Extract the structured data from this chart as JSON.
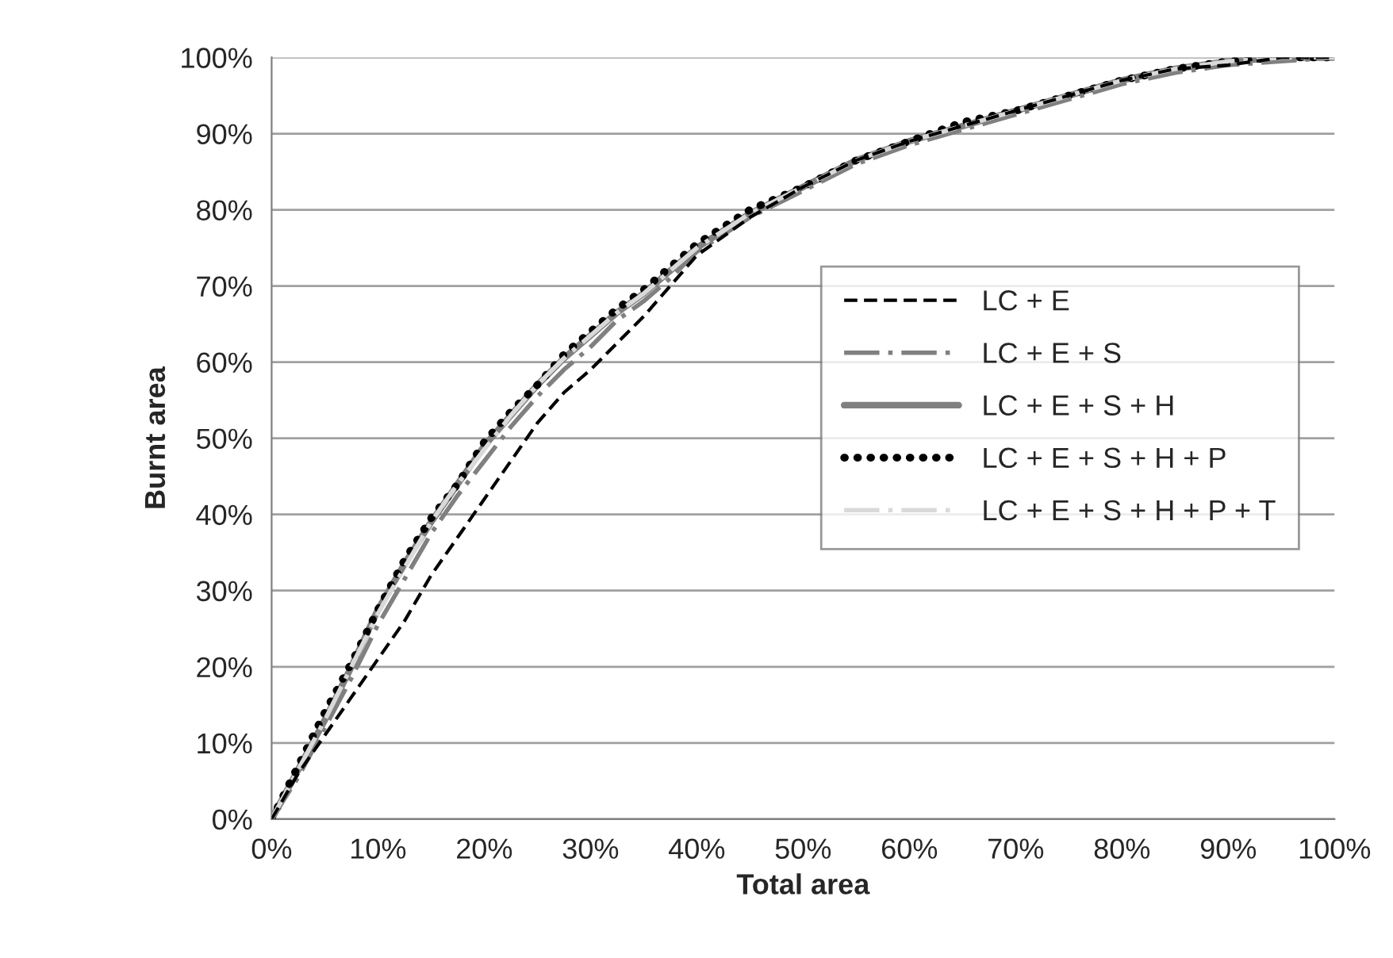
{
  "chart_data": {
    "type": "line",
    "xlabel": "Total area",
    "ylabel": "Burnt area",
    "x": [
      0,
      2.5,
      5,
      7.5,
      10,
      12.5,
      15,
      17.5,
      20,
      22.5,
      25,
      27.5,
      30,
      32.5,
      35,
      37.5,
      40,
      45,
      50,
      55,
      60,
      65,
      70,
      75,
      80,
      85,
      90,
      95,
      100
    ],
    "series": [
      {
        "name": "LC + E",
        "color": "#000000",
        "line_style": "dashed",
        "values": [
          0,
          6,
          11,
          16,
          21,
          26,
          32,
          37,
          42,
          47,
          52,
          56,
          59,
          62.5,
          66,
          70,
          74,
          79,
          83,
          86.5,
          89,
          91,
          93,
          95,
          97,
          98.5,
          99,
          100,
          100
        ]
      },
      {
        "name": "LC + E + S",
        "color": "#808080",
        "line_style": "dashdot",
        "values": [
          0,
          5.5,
          12,
          18.5,
          25.5,
          31.5,
          37.5,
          42.5,
          47,
          51.5,
          55.5,
          59,
          62,
          65.5,
          68,
          71,
          74.5,
          79,
          82.5,
          86,
          88.5,
          90.5,
          92.5,
          94.5,
          96.5,
          98,
          99,
          99.5,
          100
        ]
      },
      {
        "name": "LC + E + S + H",
        "color": "#808080",
        "line_style": "solid",
        "values": [
          0,
          6.5,
          13,
          20,
          27.5,
          33.5,
          39,
          44,
          49,
          53,
          57,
          60.5,
          63.5,
          66.5,
          69,
          72,
          75,
          79.5,
          83,
          86.5,
          89,
          91,
          93,
          95,
          97,
          98.5,
          99.5,
          100,
          100
        ]
      },
      {
        "name": "LC + E + S + H + P",
        "color": "#000000",
        "line_style": "dotted",
        "values": [
          0,
          7,
          14,
          20.5,
          27.5,
          34,
          39.5,
          44,
          49.5,
          53.5,
          57,
          61,
          64,
          67,
          69.5,
          72.5,
          75.5,
          80,
          83,
          86.5,
          89,
          91.5,
          93,
          95,
          97,
          98.5,
          99.5,
          100,
          100
        ]
      },
      {
        "name": "LC + E + S + H + P + T",
        "color": "#d9d9d9",
        "line_style": "dashdot",
        "values": [
          0,
          6.5,
          13,
          20,
          27,
          33,
          39,
          44,
          48.5,
          53,
          57,
          60.5,
          63.5,
          66.5,
          69,
          72,
          75,
          79.5,
          83,
          86.5,
          89,
          91,
          93,
          95,
          97,
          98.5,
          99.5,
          100,
          100
        ]
      }
    ],
    "xlim": [
      0,
      100
    ],
    "ylim": [
      0,
      100
    ],
    "xticks": [
      {
        "value": 0,
        "label": "0%"
      },
      {
        "value": 10,
        "label": "10%"
      },
      {
        "value": 20,
        "label": "20%"
      },
      {
        "value": 30,
        "label": "30%"
      },
      {
        "value": 40,
        "label": "40%"
      },
      {
        "value": 50,
        "label": "50%"
      },
      {
        "value": 60,
        "label": "60%"
      },
      {
        "value": 70,
        "label": "70%"
      },
      {
        "value": 80,
        "label": "80%"
      },
      {
        "value": 90,
        "label": "90%"
      },
      {
        "value": 100,
        "label": "100%"
      }
    ],
    "yticks": [
      {
        "value": 0,
        "label": "0%"
      },
      {
        "value": 10,
        "label": "10%"
      },
      {
        "value": 20,
        "label": "20%"
      },
      {
        "value": 30,
        "label": "30%"
      },
      {
        "value": 40,
        "label": "40%"
      },
      {
        "value": 50,
        "label": "50%"
      },
      {
        "value": 60,
        "label": "60%"
      },
      {
        "value": 70,
        "label": "70%"
      },
      {
        "value": 80,
        "label": "80%"
      },
      {
        "value": 90,
        "label": "90%"
      },
      {
        "value": 100,
        "label": "100%"
      }
    ],
    "grid": "y",
    "legend": "center right",
    "marker": "none"
  }
}
